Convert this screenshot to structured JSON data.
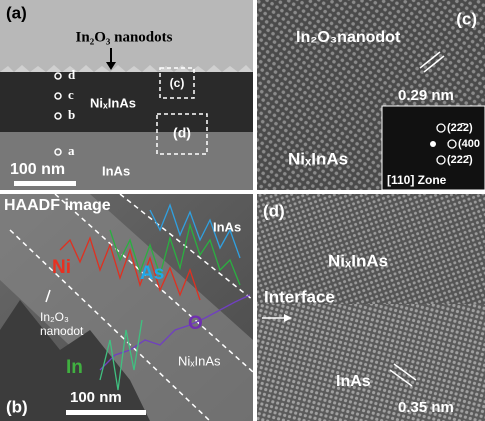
{
  "panel_a": {
    "label": "(a)",
    "title": "In₂O₃ nanodots",
    "points": [
      "d",
      "c",
      "b",
      "a"
    ],
    "box_c": "(c)",
    "box_d": "(d)",
    "layer_top": "NiₓInAs",
    "layer_bottom": "InAs",
    "scale": "100 nm"
  },
  "panel_c": {
    "label": "(c)",
    "title": "In₂O₃nanodot",
    "spacing": "0.29 nm",
    "layer": "NiₓInAs",
    "fft": {
      "spots": [
        "(22̄2)",
        "(400",
        "(222̄)"
      ],
      "zone": "[110] Zone"
    }
  },
  "panel_b": {
    "label": "(b)",
    "title": "HAADF image",
    "top_layer": "InAs",
    "elements": [
      "Ni",
      "As",
      "O",
      "In"
    ],
    "nanodot": "In₂O₃\nnanodot",
    "bottom_layer": "NiₓInAs",
    "scale": "100 nm"
  },
  "panel_d": {
    "label": "(d)",
    "layer_top": "NiₓInAs",
    "interface": "Interface",
    "layer_bottom": "InAs",
    "spacing": "0.35 nm"
  }
}
